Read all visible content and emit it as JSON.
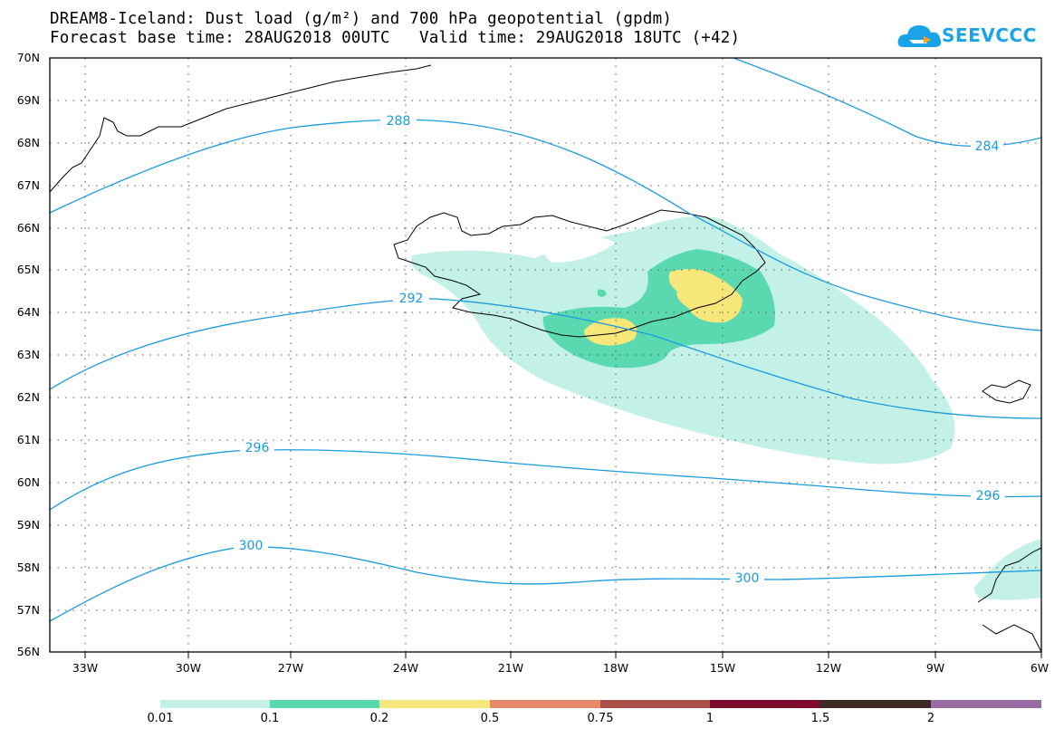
{
  "title": {
    "line1": "DREAM8-Iceland: Dust load (g/m²) and 700 hPa geopotential (gpdm)",
    "line2": "Forecast base time: 28AUG2018 00UTC   Valid time: 29AUG2018 18UTC (+42)"
  },
  "logo": {
    "text": "SEEVCCC",
    "icon": "cloud-icon",
    "color": "#1aa3e6"
  },
  "axes": {
    "lat_labels": [
      "70N",
      "69N",
      "68N",
      "67N",
      "66N",
      "65N",
      "64N",
      "63N",
      "62N",
      "61N",
      "60N",
      "59N",
      "58N",
      "57N",
      "56N"
    ],
    "lon_labels": [
      "33W",
      "30W",
      "27W",
      "24W",
      "21W",
      "18W",
      "15W",
      "12W",
      "9W",
      "6W"
    ],
    "grid": "dotted"
  },
  "contours": {
    "color": "#1a9be0",
    "labels": [
      "288",
      "284",
      "292",
      "296",
      "296",
      "300",
      "300"
    ]
  },
  "colorbar": {
    "labels": [
      "0.01",
      "0.1",
      "0.2",
      "0.5",
      "0.75",
      "1",
      "1.5",
      "2"
    ],
    "colors": [
      "#c3f1e8",
      "#5ad9b0",
      "#f7e67a",
      "#e8896b",
      "#a85048",
      "#7e0a2c",
      "#3b2a22",
      "#9a6aa3"
    ]
  }
}
